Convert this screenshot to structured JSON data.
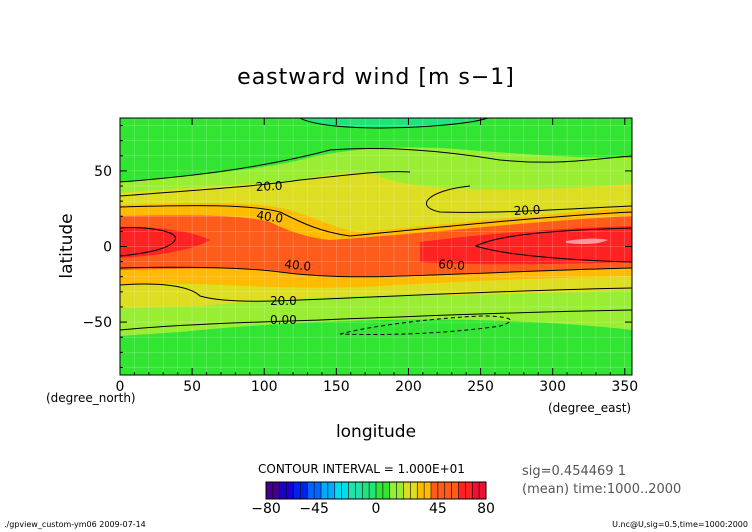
{
  "chart_data": {
    "type": "contour",
    "title": "eastward wind [m s−1]",
    "xlabel": "longitude",
    "ylabel": "latitude",
    "x_unit": "(degree_east)",
    "y_unit": "(degree_north)",
    "xlim": [
      0,
      355
    ],
    "ylim": [
      -85,
      85
    ],
    "xticks": [
      "0",
      "50",
      "100",
      "150",
      "200",
      "250",
      "300",
      "350"
    ],
    "yticks": [
      "50",
      "0",
      "−50"
    ],
    "contour_interval_text": "CONTOUR INTERVAL = 1.000E+01",
    "contour_labels": [
      "20.0",
      "40.0",
      "40.0",
      "20.0",
      "60.0",
      "20.0",
      "0.00"
    ],
    "colorbar": {
      "min": -80,
      "max": 80,
      "step": 5,
      "tick_labels": [
        "−80",
        "−45",
        "0",
        "45",
        "80"
      ]
    },
    "colors": {
      "level_0_10": "#33e533",
      "level_10_20": "#99ee33",
      "level_20_30": "#dddd22",
      "level_30_40": "#ffbb00",
      "level_40_60": "#ff5c1c",
      "level_60_70": "#ff2222",
      "level_70_80": "#ee1133",
      "level_neg": "#22e27a"
    }
  },
  "annotations": {
    "sig": "sig=0.454469 1",
    "mean_time": "(mean) time:1000..2000",
    "footer_left": "./gpview_custom-ym06  2009-07-14",
    "footer_right": "U.nc@U,sig=0.5,time=1000:2000"
  }
}
